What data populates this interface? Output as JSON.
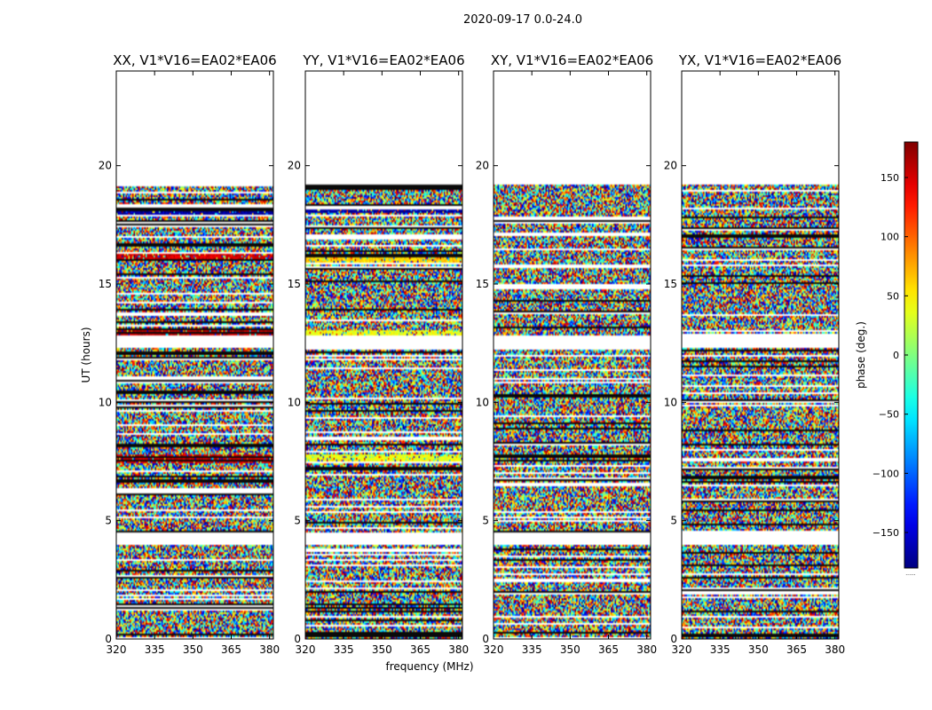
{
  "figure": {
    "suptitle": "2020-09-17 0.0-24.0",
    "xlabel": "frequency (MHz)",
    "ylabel": "UT (hours)"
  },
  "chart_data": [
    {
      "type": "heatmap",
      "title": "XX, V1*V16=EA02*EA06",
      "xlabel": "frequency (MHz)",
      "ylabel": "UT (hours)",
      "xlim": [
        320,
        381.5
      ],
      "ylim": [
        0,
        24
      ],
      "xticks": [
        320,
        335,
        350,
        365,
        380
      ],
      "yticks": [
        0,
        5,
        10,
        15,
        20
      ],
      "value_range_deg": [
        -180,
        180
      ],
      "data_coverage_ut": [
        [
          0.0,
          4.0
        ],
        [
          4.5,
          19.2
        ]
      ],
      "gaps_ut": [
        [
          4.0,
          4.5
        ],
        [
          12.3,
          12.8
        ],
        [
          19.2,
          24.0
        ]
      ],
      "notable_bands": [
        {
          "ut": 16.2,
          "phase_deg": 150
        },
        {
          "ut": 12.9,
          "phase_deg": 160
        },
        {
          "ut": 7.6,
          "phase_deg": 150
        },
        {
          "ut": 18.0,
          "phase_deg": -170
        }
      ]
    },
    {
      "type": "heatmap",
      "title": "YY, V1*V16=EA02*EA06",
      "xlabel": "",
      "ylabel": "",
      "xlim": [
        320,
        381.5
      ],
      "ylim": [
        0,
        24
      ],
      "xticks": [
        320,
        335,
        350,
        365,
        380
      ],
      "yticks": [
        0,
        5,
        10,
        15,
        20
      ],
      "value_range_deg": [
        -180,
        180
      ],
      "data_coverage_ut": [
        [
          0.0,
          4.0
        ],
        [
          4.5,
          19.2
        ]
      ],
      "gaps_ut": [
        [
          4.0,
          4.5
        ],
        [
          12.3,
          12.8
        ],
        [
          19.2,
          24.0
        ]
      ],
      "notable_bands": [
        {
          "ut": 18.2,
          "phase_deg": -170
        },
        {
          "ut": 16.1,
          "phase_deg": 60
        },
        {
          "ut": 12.9,
          "phase_deg": 40
        },
        {
          "ut": 7.6,
          "phase_deg": 40
        }
      ]
    },
    {
      "type": "heatmap",
      "title": "XY, V1*V16=EA02*EA06",
      "xlabel": "",
      "ylabel": "",
      "xlim": [
        320,
        381.5
      ],
      "ylim": [
        0,
        24
      ],
      "xticks": [
        320,
        335,
        350,
        365,
        380
      ],
      "yticks": [
        0,
        5,
        10,
        15,
        20
      ],
      "value_range_deg": [
        -180,
        180
      ],
      "data_coverage_ut": [
        [
          0.0,
          4.0
        ],
        [
          4.5,
          19.2
        ]
      ],
      "gaps_ut": [
        [
          4.0,
          4.5
        ],
        [
          12.3,
          12.8
        ],
        [
          19.2,
          24.0
        ]
      ],
      "notable_bands": []
    },
    {
      "type": "heatmap",
      "title": "YX, V1*V16=EA02*EA06",
      "xlabel": "",
      "ylabel": "",
      "xlim": [
        320,
        381.5
      ],
      "ylim": [
        0,
        24
      ],
      "xticks": [
        320,
        335,
        350,
        365,
        380
      ],
      "yticks": [
        0,
        5,
        10,
        15,
        20
      ],
      "value_range_deg": [
        -180,
        180
      ],
      "data_coverage_ut": [
        [
          0.0,
          4.0
        ],
        [
          4.5,
          19.2
        ]
      ],
      "gaps_ut": [
        [
          4.0,
          4.5
        ],
        [
          12.3,
          12.8
        ],
        [
          19.2,
          24.0
        ]
      ],
      "notable_bands": []
    }
  ],
  "colorbar": {
    "label": "phase (deg.)",
    "colormap": "jet",
    "vmin": -180,
    "vmax": 180,
    "ticks": [
      -150,
      -100,
      -50,
      0,
      50,
      100,
      150
    ],
    "tick_labels": [
      "−150",
      "−100",
      "−50",
      "0",
      "50",
      "100",
      "150"
    ],
    "footer": "......"
  }
}
